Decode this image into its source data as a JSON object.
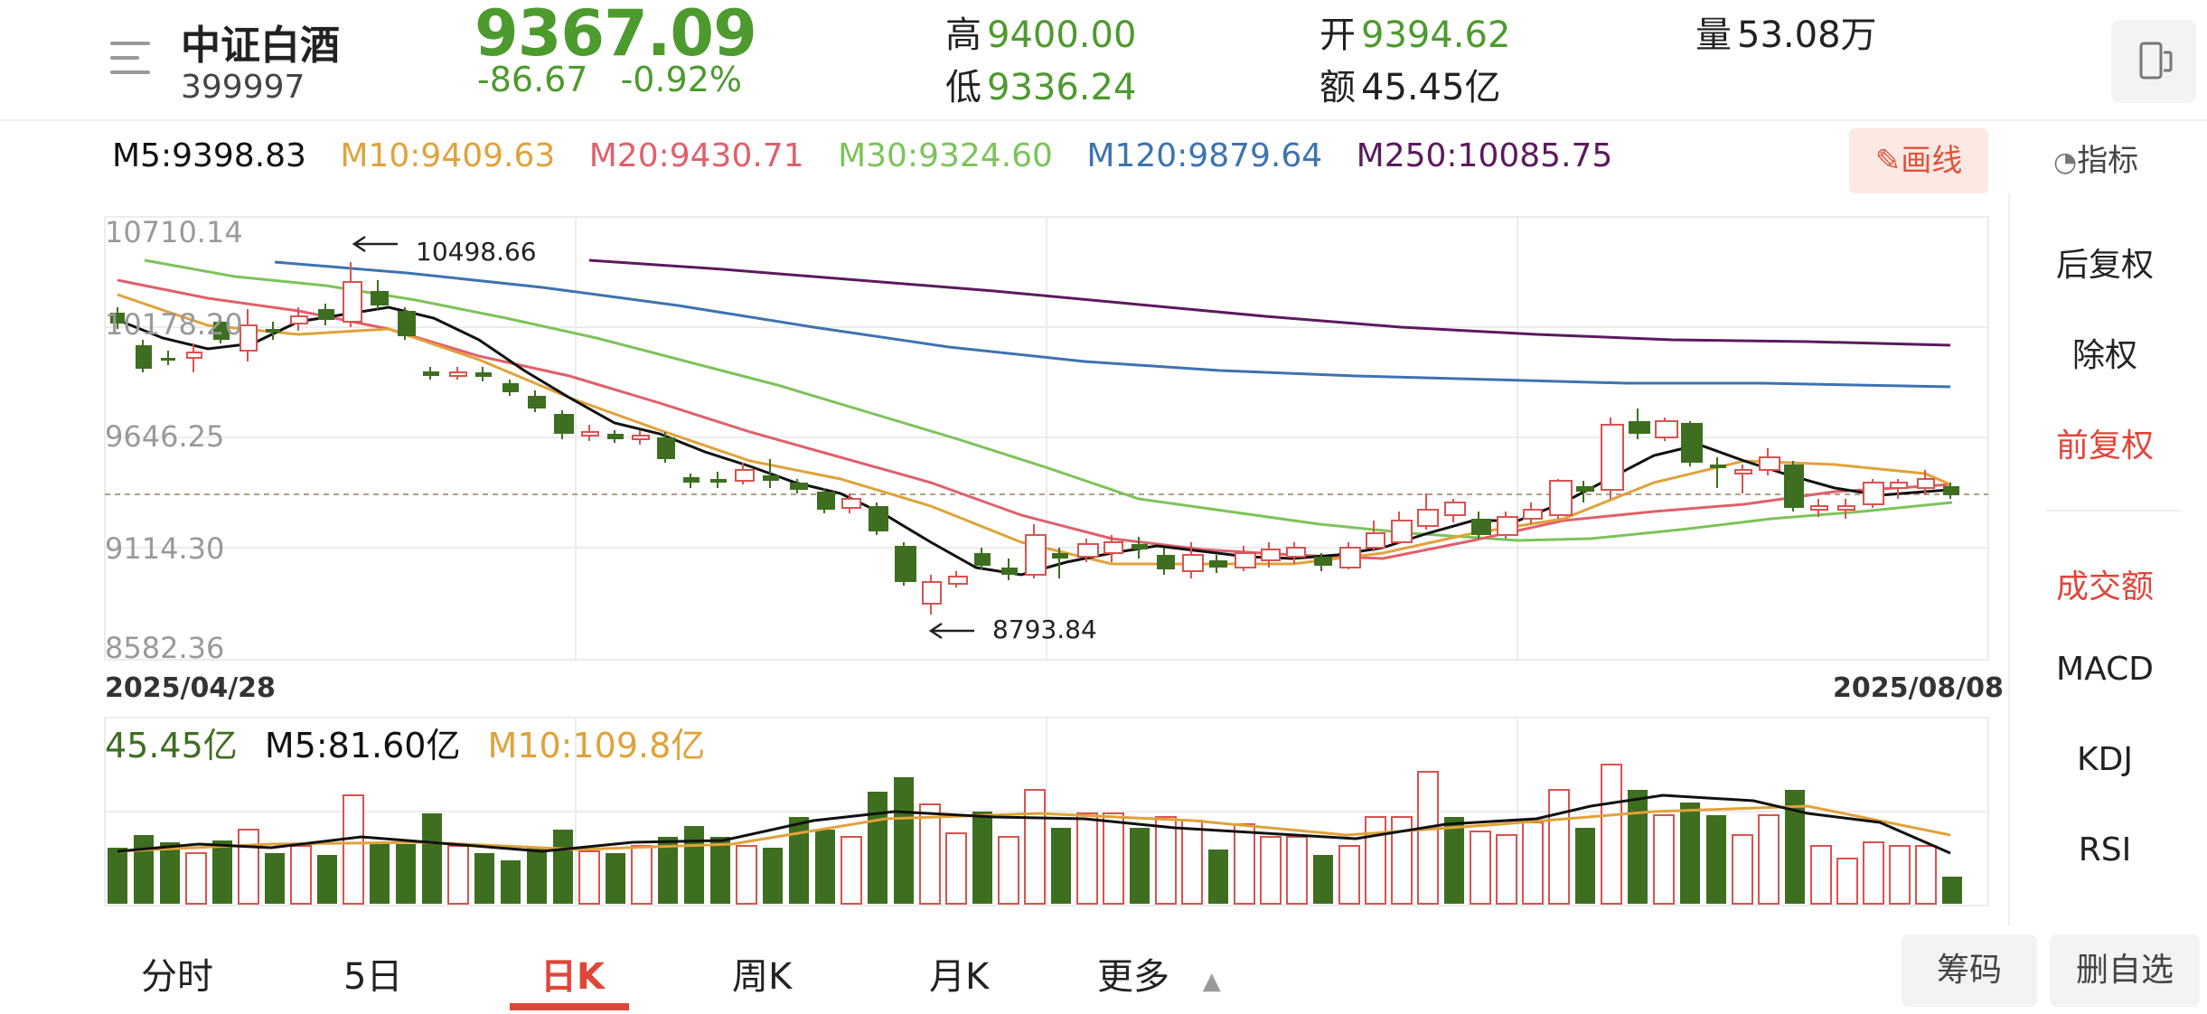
{
  "header": {
    "name": "中证白酒",
    "code": "399997",
    "price": "9367.09",
    "change": "-86.67",
    "change_pct": "-0.92%",
    "high_label": "高",
    "high": "9400.00",
    "low_label": "低",
    "low": "9336.24",
    "open_label": "开",
    "open": "9394.62",
    "amount_label": "额",
    "amount": "45.45亿",
    "volume_label": "量",
    "volume": "53.08万",
    "screen_icon": "phone-rotate-icon"
  },
  "ma_legend": {
    "m5": "M5:9398.83",
    "m10": "M10:9409.63",
    "m20": "M20:9430.71",
    "m30": "M30:9324.60",
    "m120": "M120:9879.64",
    "m250": "M250:10085.75"
  },
  "colors": {
    "green": "#3e6e1f",
    "red": "#d9534f",
    "m5": "#111111",
    "m10": "#e0a23a",
    "m20": "#e0606b",
    "m30": "#7cc35a",
    "m120": "#3d73b0",
    "m250": "#5c1a5c"
  },
  "draw_button": "画线",
  "indicator_link": "指标",
  "side_menu": {
    "hfq": "后复权",
    "cq": "除权",
    "qfq": "前复权",
    "cje": "成交额",
    "macd": "MACD",
    "kdj": "KDJ",
    "rsi": "RSI"
  },
  "chart_data": {
    "type": "candlestick",
    "y_ticks": [
      "10710.14",
      "10178.20",
      "9646.25",
      "9114.30",
      "8582.36"
    ],
    "ylim": [
      8582.36,
      10710.14
    ],
    "x_start_label": "2025/04/28",
    "x_end_label": "2025/08/08",
    "annotation_high": "10498.66",
    "annotation_low": "8793.84",
    "volume_legend": {
      "amount": "45.45亿",
      "m5": "M5:81.60亿",
      "m10": "M10:109.8亿"
    }
  },
  "tabs": [
    "分时",
    "5日",
    "日K",
    "周K",
    "月K",
    "更多"
  ],
  "buttons": {
    "chips": "筹码",
    "remove_watchlist": "删自选"
  }
}
